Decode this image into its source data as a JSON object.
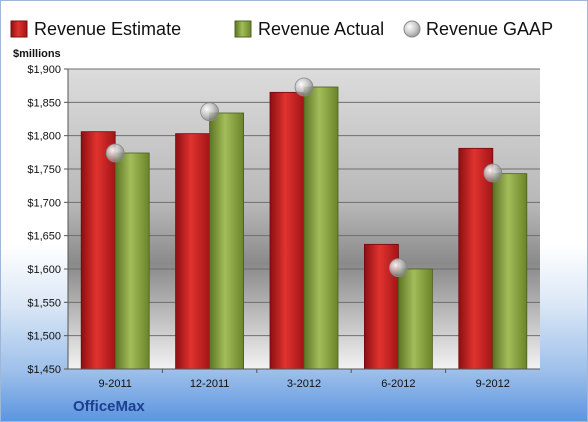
{
  "chart_data": {
    "type": "bar",
    "title": "",
    "unit_label": "$millions",
    "xlabel": "",
    "ylabel": "",
    "categories": [
      "9-2011",
      "12-2011",
      "3-2012",
      "6-2012",
      "9-2012"
    ],
    "series": [
      {
        "name": "Revenue Estimate",
        "kind": "bar",
        "color": "#cc1e22",
        "values": [
          1806,
          1803,
          1865,
          1637,
          1781
        ]
      },
      {
        "name": "Revenue Actual",
        "kind": "bar",
        "color": "#8aa53f",
        "values": [
          1774,
          1834,
          1873,
          1600,
          1743
        ]
      },
      {
        "name": "Revenue GAAP",
        "kind": "marker",
        "color": "#b0b0b0",
        "values": [
          1774,
          1836,
          1873,
          1602,
          1744
        ]
      }
    ],
    "ylim": [
      1450,
      1900
    ],
    "yticks": [
      1450,
      1500,
      1550,
      1600,
      1650,
      1700,
      1750,
      1800,
      1850,
      1900
    ],
    "ytick_labels": [
      "$1,450",
      "$1,500",
      "$1,550",
      "$1,600",
      "$1,650",
      "$1,700",
      "$1,750",
      "$1,800",
      "$1,850",
      "$1,900"
    ],
    "grid": true,
    "legend_position": "top"
  },
  "footer": {
    "company": "OfficeMax"
  }
}
